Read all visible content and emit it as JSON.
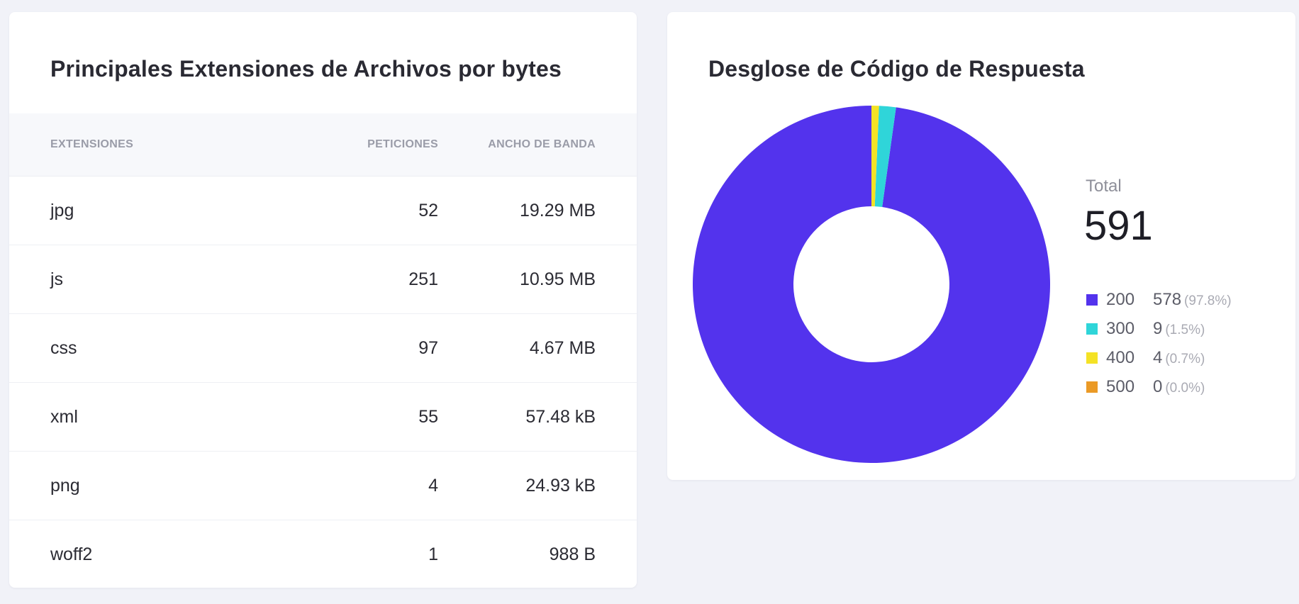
{
  "extensions_card": {
    "title": "Principales Extensiones de Archivos por bytes",
    "columns": [
      "EXTENSIONES",
      "PETICIONES",
      "ANCHO DE BANDA"
    ],
    "rows": [
      {
        "extension": "jpg",
        "requests": "52",
        "bandwidth": "19.29 MB"
      },
      {
        "extension": "js",
        "requests": "251",
        "bandwidth": "10.95 MB"
      },
      {
        "extension": "css",
        "requests": "97",
        "bandwidth": "4.67 MB"
      },
      {
        "extension": "xml",
        "requests": "55",
        "bandwidth": "57.48 kB"
      },
      {
        "extension": "png",
        "requests": "4",
        "bandwidth": "24.93 kB"
      },
      {
        "extension": "woff2",
        "requests": "1",
        "bandwidth": "988 B"
      }
    ]
  },
  "response_card": {
    "title": "Desglose de Código de Respuesta",
    "total_label": "Total",
    "total_value": "591",
    "legend": [
      {
        "code": "200",
        "count": "578",
        "percent": "(97.8%)",
        "color": "#5333ed"
      },
      {
        "code": "300",
        "count": "9",
        "percent": "(1.5%)",
        "color": "#2fd5d9"
      },
      {
        "code": "400",
        "count": "4",
        "percent": "(0.7%)",
        "color": "#f4e225"
      },
      {
        "code": "500",
        "count": "0",
        "percent": "(0.0%)",
        "color": "#eb9a26"
      }
    ]
  },
  "chart_data": {
    "type": "pie",
    "title": "Desglose de Código de Respuesta",
    "categories": [
      "200",
      "300",
      "400",
      "500"
    ],
    "values": [
      578,
      9,
      4,
      0
    ],
    "colors": [
      "#5333ed",
      "#2fd5d9",
      "#f4e225",
      "#eb9a26"
    ],
    "donut": true,
    "legend_position": "right"
  }
}
